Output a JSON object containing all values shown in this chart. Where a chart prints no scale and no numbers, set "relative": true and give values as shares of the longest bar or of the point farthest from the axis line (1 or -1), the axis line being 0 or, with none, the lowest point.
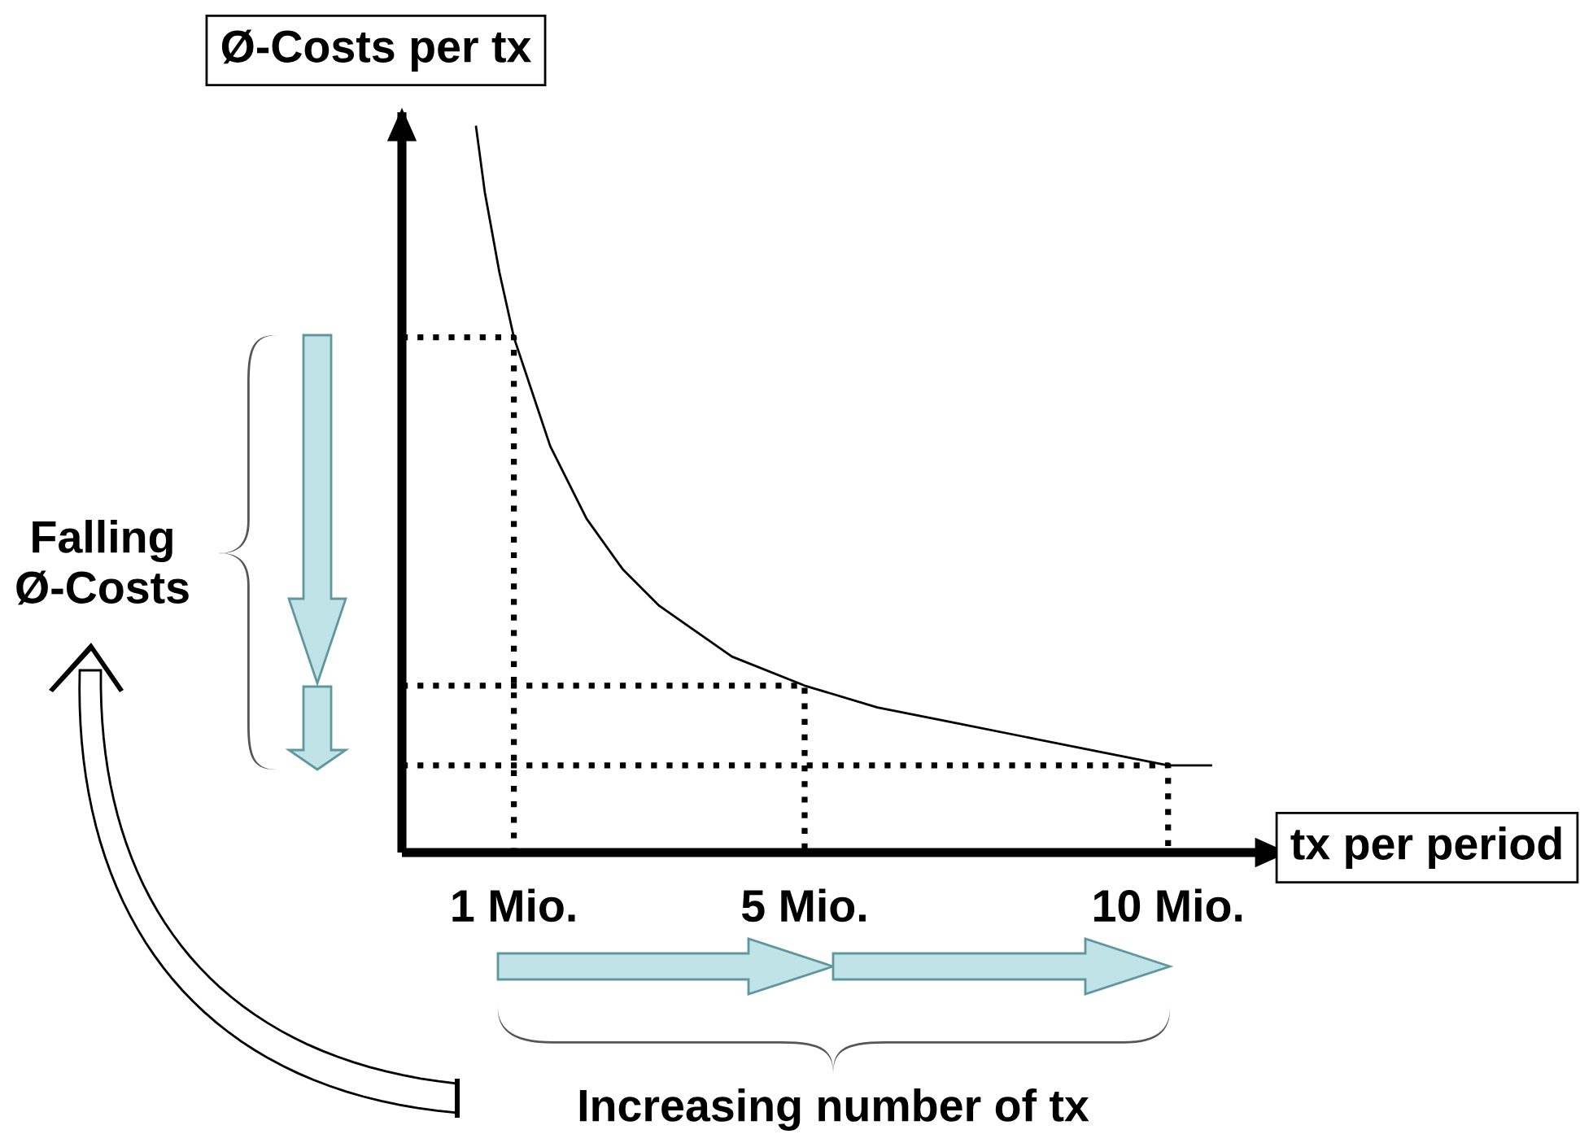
{
  "chart_data": {
    "type": "line",
    "relative": true,
    "xlabel": "tx per period",
    "ylabel": "Ø-Costs per tx",
    "annotations": [
      "Falling\nØ-Costs",
      "Increasing number of tx"
    ],
    "xlim": [
      -0.54,
      11.57
    ],
    "xticks": [
      {
        "value": 1,
        "label": "1 Mio."
      },
      {
        "value": 5,
        "label": "5 Mio."
      },
      {
        "value": 10,
        "label": "10 Mio."
      }
    ],
    "tick_labels": "x",
    "grid": false,
    "legend": false,
    "series": [
      {
        "color": "#000000",
        "line_style": "solid",
        "x": [
          0.48,
          0.6,
          0.8,
          1,
          1.5,
          2,
          2.5,
          3,
          4,
          5,
          6,
          7,
          8,
          9,
          10,
          10.59
        ],
        "values": [
          1,
          0.91,
          0.8,
          0.71,
          0.56,
          0.46,
          0.39,
          0.34,
          0.27,
          0.23,
          0.2,
          0.18,
          0.16,
          0.14,
          0.12,
          0.12
        ]
      },
      {
        "color": "#000000",
        "line_style": "dotted",
        "x": [
          -0.54,
          1,
          1
        ],
        "values": [
          0.71,
          0.71,
          0
        ]
      },
      {
        "color": "#000000",
        "line_style": "dotted",
        "x": [
          -0.54,
          5,
          5
        ],
        "values": [
          0.23,
          0.23,
          0
        ]
      },
      {
        "color": "#000000",
        "line_style": "dotted",
        "x": [
          -0.54,
          10,
          10
        ],
        "values": [
          0.12,
          0.12,
          0
        ]
      }
    ]
  }
}
